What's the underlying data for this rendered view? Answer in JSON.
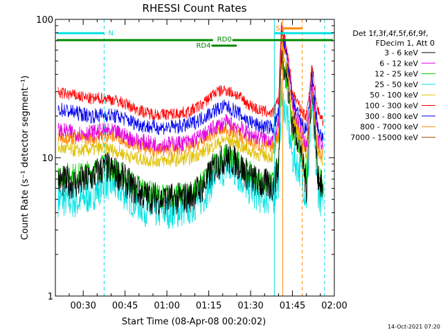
{
  "chart_data": {
    "type": "line",
    "title": "RHESSI Count Rates",
    "xlabel": "Start Time (08-Apr-08 00:20:02)",
    "ylabel": "Count Rate (s⁻¹ detector segment⁻¹)",
    "y_scale": "log",
    "ylim": [
      1,
      100
    ],
    "xlim": [
      "00:20:02",
      "02:00:00"
    ],
    "x_ticks": [
      "00:30",
      "00:45",
      "01:00",
      "01:15",
      "01:30",
      "01:45",
      "02:00"
    ],
    "y_ticks": [
      "1",
      "10",
      "100"
    ],
    "grid": false,
    "legend_position": "right",
    "legend_header": [
      "Det 1f,3f,4f,5f,6f,9f,",
      "FDecim 1, Att 0"
    ],
    "x_times": [
      "00:21",
      "00:28",
      "00:33",
      "00:38",
      "00:43",
      "00:48",
      "00:53",
      "00:58",
      "01:03",
      "01:08",
      "01:13",
      "01:17",
      "01:21",
      "01:25",
      "01:29",
      "01:33",
      "01:38",
      "01:40",
      "01:41",
      "01:43",
      "01:45",
      "01:48",
      "01:50",
      "01:52",
      "01:54",
      "01:56"
    ],
    "series": [
      {
        "name": "3 - 6 keV",
        "color": "#000000",
        "values": [
          6.8,
          6.5,
          7.2,
          8.6,
          7.5,
          6.0,
          5.2,
          5.0,
          5.0,
          5.2,
          6.2,
          8.5,
          10.0,
          9.3,
          7.5,
          6.5,
          6.3,
          8.5,
          60,
          40,
          18,
          12,
          6.0,
          38,
          8.0,
          5.5
        ]
      },
      {
        "name": "6 - 12 keV",
        "color": "#e000e0",
        "values": [
          15.8,
          15.0,
          15.2,
          15.7,
          15.0,
          13.5,
          12.8,
          12.5,
          12.6,
          13.0,
          14.5,
          16.5,
          18.0,
          17.0,
          15.0,
          14.0,
          13.5,
          17.0,
          85,
          60,
          25,
          16,
          12,
          34,
          14,
          11.5
        ]
      },
      {
        "name": "12 - 25 keV",
        "color": "#00cc00",
        "values": [
          7.6,
          7.5,
          8.0,
          8.8,
          7.8,
          6.5,
          5.7,
          5.3,
          5.3,
          5.5,
          6.6,
          9.0,
          10.5,
          9.5,
          7.8,
          6.8,
          6.5,
          9.0,
          50,
          35,
          16,
          11,
          7.5,
          32,
          8.5,
          6.3
        ]
      },
      {
        "name": "25 - 50 keV",
        "color": "#00e0e0",
        "values": [
          5.0,
          4.8,
          5.4,
          6.7,
          6.0,
          4.9,
          4.2,
          4.1,
          4.1,
          4.3,
          5.2,
          7.3,
          8.5,
          7.8,
          6.2,
          5.3,
          5.0,
          6.8,
          28,
          20,
          10,
          8,
          5.0,
          22,
          6.0,
          4.4
        ]
      },
      {
        "name": "50 - 100 keV",
        "color": "#e0c000",
        "values": [
          11.8,
          11.2,
          11.5,
          11.8,
          11.0,
          10.0,
          9.6,
          9.5,
          9.6,
          9.9,
          11.0,
          12.3,
          13.6,
          12.8,
          11.3,
          10.5,
          10.2,
          13.5,
          62,
          44,
          20,
          13,
          10,
          30,
          11,
          9.0
        ]
      },
      {
        "name": "100 - 300 keV",
        "color": "#ff0000",
        "values": [
          29.5,
          28.0,
          26.5,
          27.0,
          25.5,
          23.0,
          21.0,
          20.5,
          20.8,
          21.5,
          24.5,
          29.5,
          31.0,
          28.5,
          24.5,
          22.0,
          21.0,
          26.0,
          88,
          62,
          30,
          22,
          20,
          46,
          22,
          18.5
        ]
      },
      {
        "name": "300 - 800 keV",
        "color": "#0000ee",
        "values": [
          22.5,
          21.0,
          20.0,
          20.5,
          19.8,
          18.0,
          16.8,
          16.5,
          16.7,
          17.3,
          19.5,
          22.0,
          23.5,
          21.5,
          18.5,
          17.0,
          16.5,
          21.0,
          80,
          56,
          26,
          18,
          15.5,
          40,
          16.5,
          13.5
        ]
      },
      {
        "name": "800 - 7000 keV",
        "color": "#ff8800",
        "values": [
          14.3,
          13.8,
          13.8,
          14.5,
          14.0,
          12.5,
          11.5,
          11.3,
          11.4,
          11.8,
          13.2,
          15.2,
          16.2,
          15.0,
          13.2,
          12.3,
          12.0,
          15.0,
          75,
          52,
          22,
          14,
          11.5,
          32,
          12,
          10.2
        ]
      },
      {
        "name": "7000 - 15000 keV",
        "color": "#9a5500",
        "values": []
      }
    ],
    "top_markers": {
      "N_label": "N",
      "S_label": "S",
      "RD0_label": "RD0",
      "RD4_label": "RD4"
    },
    "vertical_markers": [
      {
        "time": "00:37:30",
        "color": "#00e0e0",
        "style": "dashed"
      },
      {
        "time": "01:38:30",
        "color": "#00e0e0",
        "style": "solid"
      },
      {
        "time": "01:41:30",
        "color": "#ff8800",
        "style": "solid"
      },
      {
        "time": "01:48:30",
        "color": "#ff8800",
        "style": "dashed"
      },
      {
        "time": "01:56:30",
        "color": "#00e0e0",
        "style": "dashed"
      }
    ],
    "timestamp": "14-Oct-2021 07:20"
  }
}
